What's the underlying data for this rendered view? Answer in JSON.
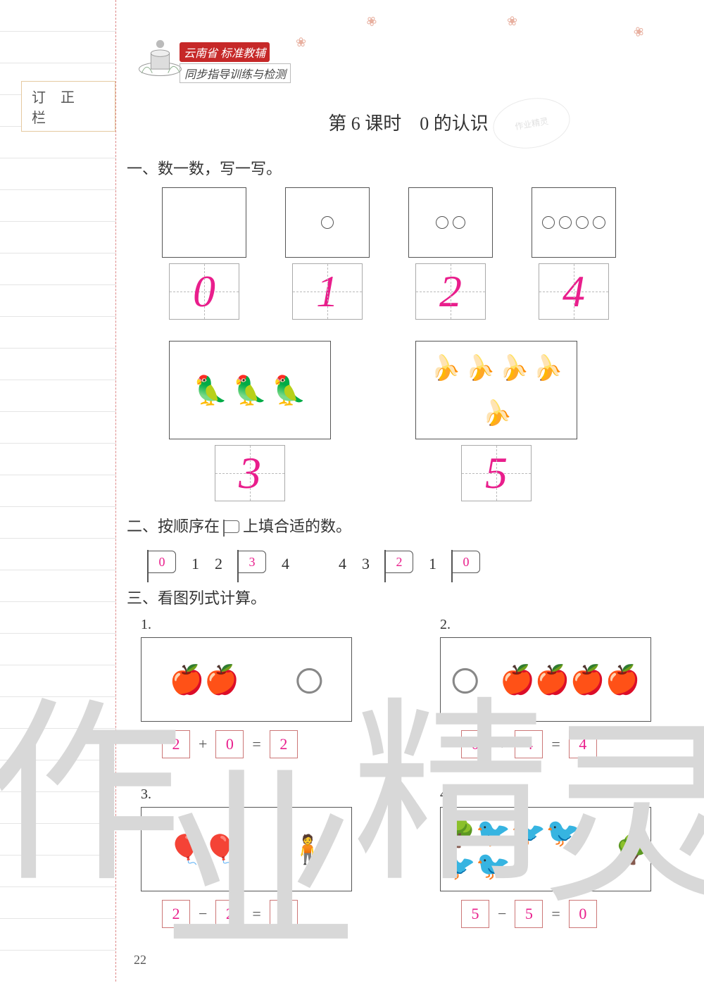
{
  "margin_label": "订 正 栏",
  "brand": {
    "bar": "云南省 标准教辅",
    "sub": "同步指导训练与检测"
  },
  "lesson_title": "第 6 课时　0 的认识",
  "stamp_text": "作业精灵",
  "section1": {
    "heading": "一、数一数，写一写。",
    "row1": [
      {
        "count": 0,
        "answer": "0"
      },
      {
        "count": 1,
        "answer": "1"
      },
      {
        "count": 2,
        "answer": "2"
      },
      {
        "count": 4,
        "answer": "4"
      }
    ],
    "row2": [
      {
        "icon": "parrot",
        "count": 3,
        "answer": "3"
      },
      {
        "icon": "banana",
        "count": 5,
        "answer": "5"
      }
    ]
  },
  "section2": {
    "heading_pre": "二、按顺序在",
    "heading_post": "上填合适的数。",
    "seq_left": [
      {
        "type": "flag",
        "value": "0"
      },
      {
        "type": "num",
        "value": "1"
      },
      {
        "type": "num",
        "value": "2"
      },
      {
        "type": "flag",
        "value": "3"
      },
      {
        "type": "num",
        "value": "4"
      }
    ],
    "seq_right": [
      {
        "type": "num",
        "value": "4"
      },
      {
        "type": "num",
        "value": "3"
      },
      {
        "type": "flag",
        "value": "2"
      },
      {
        "type": "num",
        "value": "1"
      },
      {
        "type": "flag",
        "value": "0"
      }
    ]
  },
  "section3": {
    "heading": "三、看图列式计算。",
    "items": [
      {
        "label": "1.",
        "pic": [
          "🍎🍎",
          "〇"
        ],
        "a": "2",
        "op": "+",
        "b": "0",
        "r": "2"
      },
      {
        "label": "2.",
        "pic": [
          "〇",
          "🍎🍎🍎🍎"
        ],
        "a": "0",
        "op": "+",
        "b": "4",
        "r": "4"
      },
      {
        "label": "3.",
        "pic": [
          "🎈🎈",
          "🧍"
        ],
        "a": "2",
        "op": "−",
        "b": "2",
        "r": "0"
      },
      {
        "label": "4.",
        "pic": [
          "🌳🐦🐦🐦🐦🐦",
          "🌳"
        ],
        "a": "5",
        "op": "−",
        "b": "5",
        "r": "0"
      }
    ]
  },
  "watermark": {
    "c1": "作",
    "c2": "业",
    "c3": "精",
    "c4": "灵"
  },
  "page_number": "22",
  "answer_color": "#e91e8c"
}
